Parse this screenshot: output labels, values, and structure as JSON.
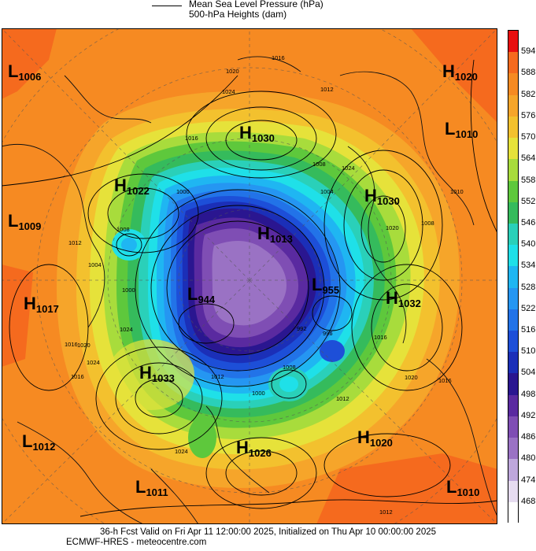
{
  "legend": {
    "mslp_label": "Mean Sea Level Pressure (hPa)",
    "height_label": "500-hPa Heights (dam)"
  },
  "colorbar": {
    "ticks": [
      "594",
      "588",
      "582",
      "576",
      "570",
      "564",
      "558",
      "552",
      "546",
      "540",
      "534",
      "528",
      "522",
      "516",
      "510",
      "504",
      "498",
      "492",
      "486",
      "480",
      "474",
      "468"
    ],
    "colors": [
      "#e80f0f",
      "#f56a1e",
      "#f68a22",
      "#f6a52a",
      "#f3c12e",
      "#e6e23a",
      "#a8dc3c",
      "#5ec83c",
      "#35bb5c",
      "#2ad0b9",
      "#1fe0e8",
      "#1fb6f2",
      "#2596f2",
      "#2273e8",
      "#1d4fd8",
      "#1b2fb8",
      "#2a1690",
      "#5a2aa0",
      "#7f4eb4",
      "#9a72c4",
      "#bea7dc",
      "#e6dcf0",
      "#ffffff"
    ]
  },
  "systems": [
    {
      "type": "L",
      "value": "1006"
    },
    {
      "type": "H",
      "value": "1020"
    },
    {
      "type": "H",
      "value": "1030"
    },
    {
      "type": "L",
      "value": "1010"
    },
    {
      "type": "H",
      "value": "1022"
    },
    {
      "type": "H",
      "value": "1030"
    },
    {
      "type": "L",
      "value": "1009"
    },
    {
      "type": "H",
      "value": "1013"
    },
    {
      "type": "L",
      "value": "944"
    },
    {
      "type": "L",
      "value": "955"
    },
    {
      "type": "H",
      "value": "1017"
    },
    {
      "type": "H",
      "value": "1032"
    },
    {
      "type": "H",
      "value": "1033"
    },
    {
      "type": "L",
      "value": "1012"
    },
    {
      "type": "H",
      "value": "1026"
    },
    {
      "type": "H",
      "value": "1020"
    },
    {
      "type": "L",
      "value": "1011"
    },
    {
      "type": "L",
      "value": "1010"
    }
  ],
  "isobar_labels": [
    "1016",
    "1020",
    "1024",
    "1016",
    "1012",
    "1010",
    "1008",
    "1004",
    "1000",
    "1024",
    "1020",
    "1008",
    "1016",
    "1024",
    "1012",
    "1004",
    "1008",
    "1000",
    "1020",
    "1024",
    "1016",
    "1012",
    "1020",
    "1016",
    "1024",
    "1012",
    "1008",
    "1000",
    "992",
    "996",
    "1012",
    "1016"
  ],
  "footer": {
    "line1": "36-h Fcst Valid on Fri Apr 11 12:00:00 2025, Initialized on Thu Apr 10 00:00:00 2025",
    "line2": "ECMWF-HRES  - meteocentre.com"
  }
}
